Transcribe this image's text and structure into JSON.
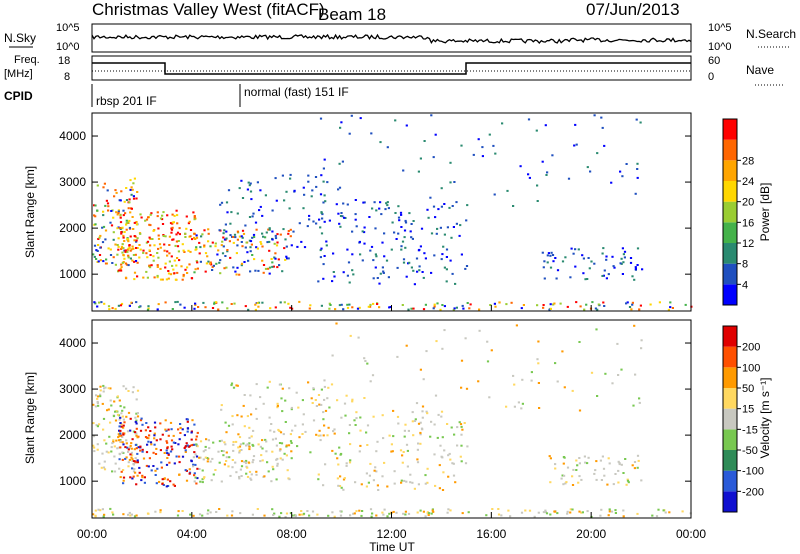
{
  "header": {
    "title": "Christmas Valley West (fitACF)",
    "beam": "Beam 18",
    "date": "07/Jun/2013"
  },
  "top_panel": {
    "nsky_label": "N.Sky",
    "nsearch_label": "N.Search",
    "left_ticks": [
      "10^5",
      "10^0"
    ],
    "right_ticks": [
      "10^5",
      "10^0"
    ],
    "freq_label_1": "Freq.",
    "freq_label_2": "[MHz]",
    "freq_ticks": [
      "18",
      "8"
    ],
    "nave_label": "Nave",
    "nave_ticks": [
      "60",
      "0"
    ],
    "cpid_label": "CPID",
    "cpid_1": "rbsp 201 IF",
    "cpid_2": "normal (fast) 151 IF"
  },
  "chart_data": [
    {
      "type": "heatmap",
      "name": "Power",
      "ylabel": "Slant Range [km]",
      "ylim": [
        200,
        4500
      ],
      "yticks": [
        "1000",
        "2000",
        "3000",
        "4000"
      ],
      "colorbar_label": "Power [dB]",
      "colorbar_ticks": [
        "4",
        "8",
        "12",
        "16",
        "20",
        "24",
        "28"
      ],
      "colorbar_colors": [
        "#0000ff",
        "#1f4fbf",
        "#2a8a70",
        "#44b24a",
        "#9acd32",
        "#ffd700",
        "#ffa500",
        "#ff6600",
        "#ff0000"
      ]
    },
    {
      "type": "heatmap",
      "name": "Velocity",
      "ylabel": "Slant Range [km]",
      "ylim": [
        200,
        4500
      ],
      "yticks": [
        "1000",
        "2000",
        "3000",
        "4000"
      ],
      "colorbar_label": "Velocity [m s⁻¹]",
      "colorbar_ticks": [
        "200",
        "100",
        "50",
        "15",
        "-15",
        "-50",
        "-100",
        "-200"
      ],
      "colorbar_colors": [
        "#1010d0",
        "#2a5ad8",
        "#2e8b57",
        "#78c850",
        "#c8c8c0",
        "#ffd860",
        "#ff9a00",
        "#ff5000",
        "#e00000"
      ]
    }
  ],
  "x_axis": {
    "label": "Time UT",
    "ticks": [
      "00:00",
      "04:00",
      "08:00",
      "12:00",
      "16:00",
      "20:00",
      "00:00"
    ]
  }
}
